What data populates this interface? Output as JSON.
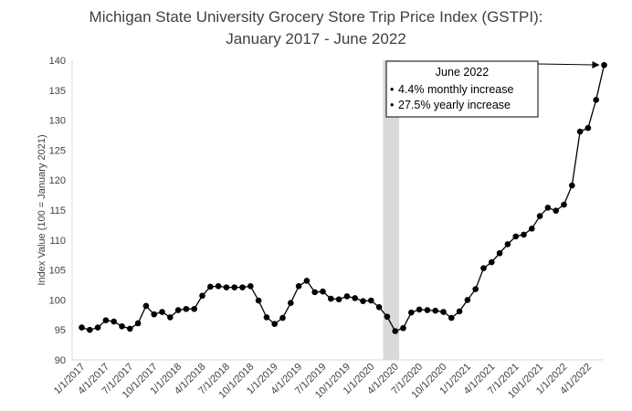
{
  "chart_data": {
    "type": "line",
    "title": [
      "Michigan State University Grocery Store Trip Price Index (GSTPI):",
      "January 2017 - June 2022"
    ],
    "ylabel": "Index Value (100 = January 2021)",
    "xlabel": "",
    "ylim": [
      90,
      140
    ],
    "yticks": [
      90,
      95,
      100,
      105,
      110,
      115,
      120,
      125,
      130,
      135,
      140
    ],
    "x_tick_labels": [
      "1/1/2017",
      "4/1/2017",
      "7/1/2017",
      "10/1/2017",
      "1/1/2018",
      "4/1/2018",
      "7/1/2018",
      "10/1/2018",
      "1/1/2019",
      "4/1/2019",
      "7/1/2019",
      "10/1/2019",
      "1/1/2020",
      "4/1/2020",
      "7/1/2020",
      "10/1/2020",
      "1/1/2021",
      "4/1/2021",
      "7/1/2021",
      "10/1/2021",
      "1/1/2022",
      "4/1/2022"
    ],
    "x": [
      "1/1/2017",
      "2/1/2017",
      "3/1/2017",
      "4/1/2017",
      "5/1/2017",
      "6/1/2017",
      "7/1/2017",
      "8/1/2017",
      "9/1/2017",
      "10/1/2017",
      "11/1/2017",
      "12/1/2017",
      "1/1/2018",
      "2/1/2018",
      "3/1/2018",
      "4/1/2018",
      "5/1/2018",
      "6/1/2018",
      "7/1/2018",
      "8/1/2018",
      "9/1/2018",
      "10/1/2018",
      "11/1/2018",
      "12/1/2018",
      "1/1/2019",
      "2/1/2019",
      "3/1/2019",
      "4/1/2019",
      "5/1/2019",
      "6/1/2019",
      "7/1/2019",
      "8/1/2019",
      "9/1/2019",
      "10/1/2019",
      "11/1/2019",
      "12/1/2019",
      "1/1/2020",
      "2/1/2020",
      "3/1/2020",
      "4/1/2020",
      "5/1/2020",
      "6/1/2020",
      "7/1/2020",
      "8/1/2020",
      "9/1/2020",
      "10/1/2020",
      "11/1/2020",
      "12/1/2020",
      "1/1/2021",
      "2/1/2021",
      "3/1/2021",
      "4/1/2021",
      "5/1/2021",
      "6/1/2021",
      "7/1/2021",
      "8/1/2021",
      "9/1/2021",
      "10/1/2021",
      "11/1/2021",
      "12/1/2021",
      "1/1/2022",
      "2/1/2022",
      "3/1/2022",
      "4/1/2022",
      "5/1/2022",
      "6/1/2022"
    ],
    "series": [
      {
        "values": [
          95.4,
          95.0,
          95.4,
          96.6,
          96.4,
          95.6,
          95.2,
          96.1,
          99.0,
          97.6,
          98.0,
          97.1,
          98.3,
          98.5,
          98.5,
          100.7,
          102.2,
          102.3,
          102.1,
          102.1,
          102.1,
          102.3,
          99.9,
          97.1,
          96.0,
          97.0,
          99.5,
          102.3,
          103.2,
          101.3,
          101.4,
          100.2,
          100.1,
          100.6,
          100.3,
          99.8,
          99.9,
          98.8,
          97.2,
          94.8,
          95.3,
          97.9,
          98.4,
          98.3,
          98.2,
          98.0,
          97.0,
          98.1,
          100.0,
          101.8,
          105.3,
          106.3,
          107.8,
          109.3,
          110.6,
          110.9,
          111.9,
          114.0,
          115.4,
          114.9,
          115.9,
          119.1,
          128.1,
          128.7,
          133.4,
          139.2
        ]
      }
    ],
    "shaded_region": {
      "from": "3/1/2020",
      "to": "4/1/2020",
      "color": "#d9d9d9"
    },
    "grid": false,
    "annotation": {
      "title": "June 2022",
      "lines": [
        "4.4% monthly increase",
        "27.5% yearly increase"
      ],
      "points_to": "6/1/2022"
    },
    "colors": {
      "line": "#000000",
      "marker": "#000000",
      "axis": "#d9d9d9",
      "text": "#404040"
    }
  }
}
